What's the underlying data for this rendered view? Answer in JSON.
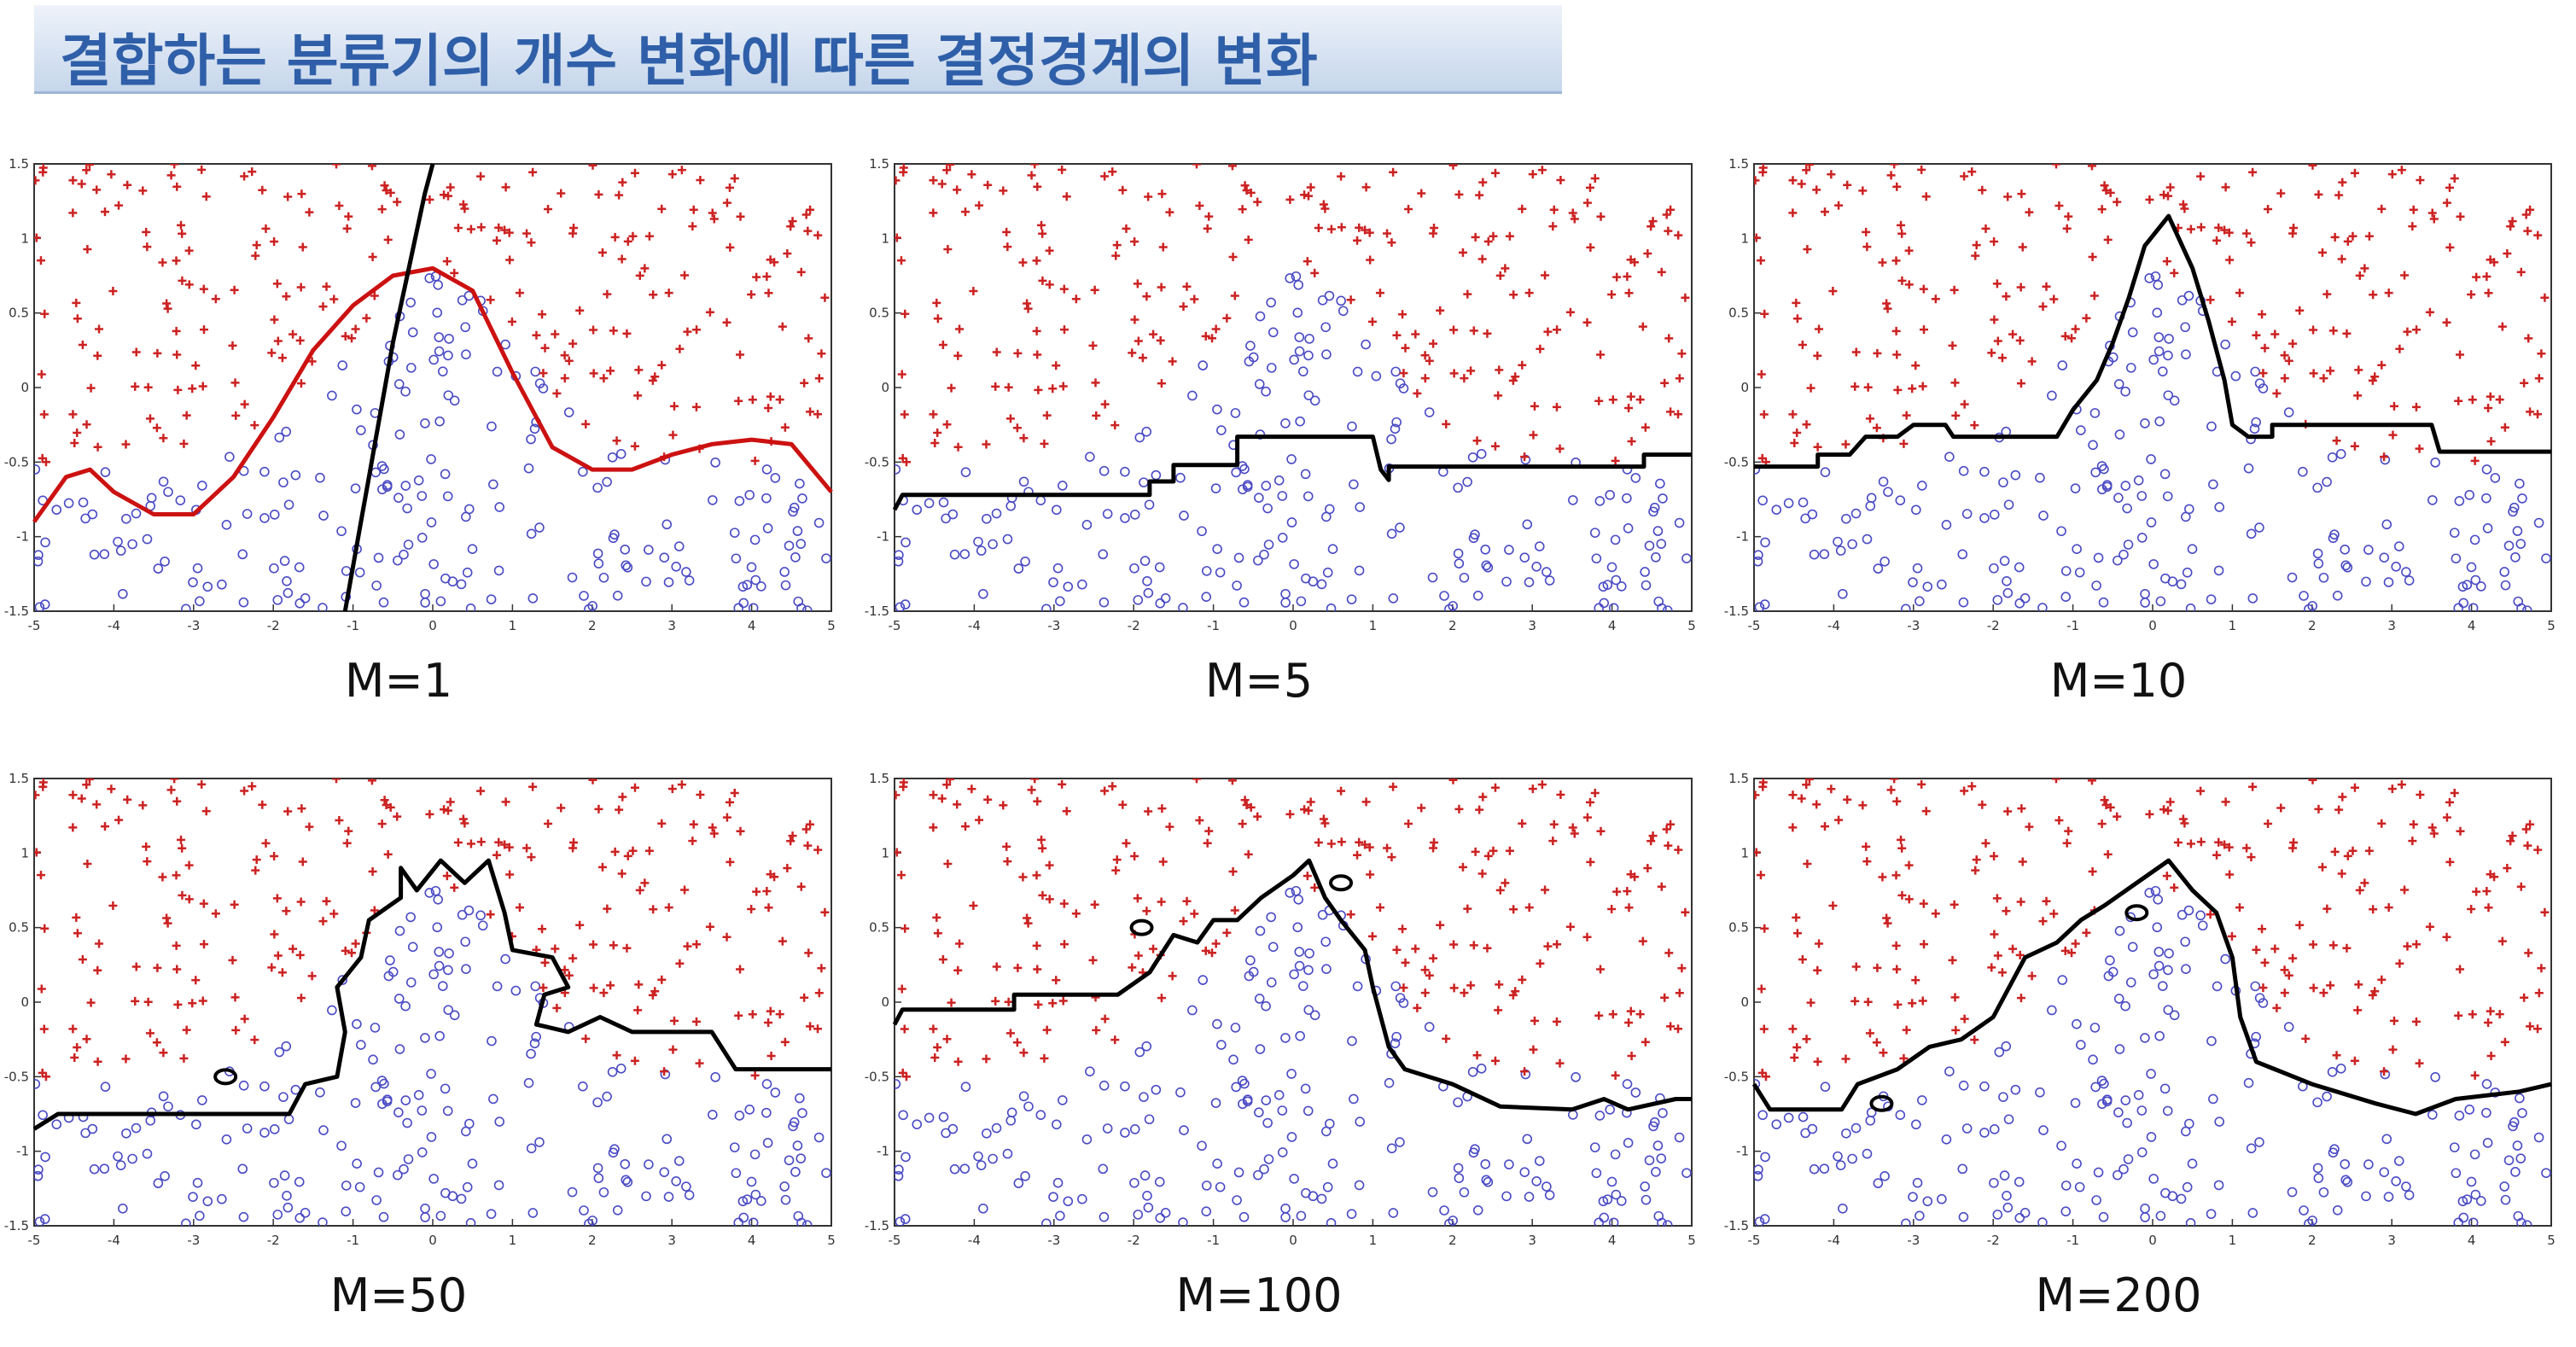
{
  "title": "결합하는 분류기의 개수 변화에 따른 결정경계의 변화",
  "colors": {
    "class_plus": "#cc2222",
    "class_circle": "#4a4ac4",
    "boundary": "#000000",
    "single_classifier": "#cc1111"
  },
  "chart_data": [
    {
      "type": "scatter",
      "label": "M=1",
      "xlim": [
        -5,
        5
      ],
      "ylim": [
        -1.5,
        1.5
      ],
      "xticks": [
        -5,
        -4,
        -3,
        -2,
        -1,
        0,
        1,
        2,
        3,
        4,
        5
      ],
      "yticks": [
        1.5,
        1,
        0.5,
        0,
        -0.5,
        -1,
        -1.5
      ],
      "boundary": [
        [
          -1.1,
          -1.5
        ],
        [
          -1.0,
          -1.2
        ],
        [
          -0.9,
          -0.9
        ],
        [
          -0.8,
          -0.6
        ],
        [
          -0.7,
          -0.3
        ],
        [
          -0.6,
          0
        ],
        [
          -0.5,
          0.3
        ],
        [
          -0.4,
          0.55
        ],
        [
          -0.3,
          0.8
        ],
        [
          -0.2,
          1.05
        ],
        [
          -0.1,
          1.3
        ],
        [
          0,
          1.5
        ]
      ],
      "classifier_curve": [
        [
          -5,
          -0.9
        ],
        [
          -4.6,
          -0.6
        ],
        [
          -4.3,
          -0.55
        ],
        [
          -4,
          -0.7
        ],
        [
          -3.5,
          -0.85
        ],
        [
          -3,
          -0.85
        ],
        [
          -2.5,
          -0.6
        ],
        [
          -2,
          -0.2
        ],
        [
          -1.5,
          0.25
        ],
        [
          -1,
          0.55
        ],
        [
          -0.5,
          0.75
        ],
        [
          0,
          0.8
        ],
        [
          0.5,
          0.65
        ],
        [
          1,
          0.1
        ],
        [
          1.5,
          -0.4
        ],
        [
          2,
          -0.55
        ],
        [
          2.5,
          -0.55
        ],
        [
          3,
          -0.45
        ],
        [
          3.5,
          -0.38
        ],
        [
          4,
          -0.35
        ],
        [
          4.5,
          -0.38
        ],
        [
          5,
          -0.7
        ]
      ]
    },
    {
      "type": "scatter",
      "label": "M=5",
      "xlim": [
        -5,
        5
      ],
      "ylim": [
        -1.5,
        1.5
      ],
      "xticks": [
        -5,
        -4,
        -3,
        -2,
        -1,
        0,
        1,
        2,
        3,
        4,
        5
      ],
      "yticks": [
        1.5,
        1,
        0.5,
        0,
        -0.5,
        -1,
        -1.5
      ],
      "boundary": [
        [
          -5,
          -0.82
        ],
        [
          -4.9,
          -0.72
        ],
        [
          -1.8,
          -0.72
        ],
        [
          -1.8,
          -0.63
        ],
        [
          -1.5,
          -0.63
        ],
        [
          -1.5,
          -0.52
        ],
        [
          -0.7,
          -0.52
        ],
        [
          -0.7,
          -0.33
        ],
        [
          1.0,
          -0.33
        ],
        [
          1.1,
          -0.55
        ],
        [
          1.2,
          -0.62
        ],
        [
          1.2,
          -0.53
        ],
        [
          4.4,
          -0.53
        ],
        [
          4.4,
          -0.45
        ],
        [
          5,
          -0.45
        ]
      ]
    },
    {
      "type": "scatter",
      "label": "M=10",
      "xlim": [
        -5,
        5
      ],
      "ylim": [
        -1.5,
        1.5
      ],
      "xticks": [
        -5,
        -4,
        -3,
        -2,
        -1,
        0,
        1,
        2,
        3,
        4,
        5
      ],
      "yticks": [
        1.5,
        1,
        0.5,
        0,
        -0.5,
        -1,
        -1.5
      ],
      "boundary": [
        [
          -5,
          -0.53
        ],
        [
          -4.2,
          -0.53
        ],
        [
          -4.2,
          -0.45
        ],
        [
          -3.8,
          -0.45
        ],
        [
          -3.6,
          -0.33
        ],
        [
          -3.2,
          -0.33
        ],
        [
          -3.0,
          -0.25
        ],
        [
          -2.6,
          -0.25
        ],
        [
          -2.5,
          -0.33
        ],
        [
          -1.2,
          -0.33
        ],
        [
          -1.0,
          -0.15
        ],
        [
          -0.7,
          0.05
        ],
        [
          -0.5,
          0.3
        ],
        [
          -0.3,
          0.6
        ],
        [
          -0.1,
          0.95
        ],
        [
          0.2,
          1.15
        ],
        [
          0.5,
          0.8
        ],
        [
          0.7,
          0.45
        ],
        [
          0.9,
          0.05
        ],
        [
          1.0,
          -0.25
        ],
        [
          1.2,
          -0.33
        ],
        [
          1.5,
          -0.33
        ],
        [
          1.5,
          -0.25
        ],
        [
          3.5,
          -0.25
        ],
        [
          3.6,
          -0.43
        ],
        [
          5,
          -0.43
        ]
      ]
    },
    {
      "type": "scatter",
      "label": "M=50",
      "xlim": [
        -5,
        5
      ],
      "ylim": [
        -1.5,
        1.5
      ],
      "xticks": [
        -5,
        -4,
        -3,
        -2,
        -1,
        0,
        1,
        2,
        3,
        4,
        5
      ],
      "yticks": [
        1.5,
        1,
        0.5,
        0,
        -0.5,
        -1,
        -1.5
      ],
      "boundary": [
        [
          -5,
          -0.85
        ],
        [
          -4.7,
          -0.75
        ],
        [
          -1.8,
          -0.75
        ],
        [
          -1.6,
          -0.55
        ],
        [
          -1.2,
          -0.5
        ],
        [
          -1.1,
          -0.2
        ],
        [
          -1.2,
          0.1
        ],
        [
          -0.9,
          0.3
        ],
        [
          -0.8,
          0.55
        ],
        [
          -0.4,
          0.7
        ],
        [
          -0.4,
          0.9
        ],
        [
          -0.2,
          0.75
        ],
        [
          0.1,
          0.95
        ],
        [
          0.4,
          0.8
        ],
        [
          0.7,
          0.95
        ],
        [
          0.9,
          0.6
        ],
        [
          1.0,
          0.35
        ],
        [
          1.5,
          0.3
        ],
        [
          1.7,
          0.1
        ],
        [
          1.4,
          0.05
        ],
        [
          1.3,
          -0.15
        ],
        [
          1.7,
          -0.2
        ],
        [
          2.1,
          -0.1
        ],
        [
          2.5,
          -0.2
        ],
        [
          3.5,
          -0.2
        ],
        [
          3.8,
          -0.45
        ],
        [
          5,
          -0.45
        ]
      ],
      "islands": [
        [
          -2.6,
          -0.5
        ]
      ]
    },
    {
      "type": "scatter",
      "label": "M=100",
      "xlim": [
        -5,
        5
      ],
      "ylim": [
        -1.5,
        1.5
      ],
      "xticks": [
        -5,
        -4,
        -3,
        -2,
        -1,
        0,
        1,
        2,
        3,
        4,
        5
      ],
      "yticks": [
        1.5,
        1,
        0.5,
        0,
        -0.5,
        -1,
        -1.5
      ],
      "boundary": [
        [
          -5,
          -0.15
        ],
        [
          -4.9,
          -0.05
        ],
        [
          -3.5,
          -0.05
        ],
        [
          -3.5,
          0.05
        ],
        [
          -2.2,
          0.05
        ],
        [
          -1.8,
          0.2
        ],
        [
          -1.5,
          0.45
        ],
        [
          -1.2,
          0.4
        ],
        [
          -1.0,
          0.55
        ],
        [
          -0.7,
          0.55
        ],
        [
          -0.4,
          0.7
        ],
        [
          0,
          0.85
        ],
        [
          0.2,
          0.95
        ],
        [
          0.4,
          0.7
        ],
        [
          0.6,
          0.55
        ],
        [
          0.9,
          0.35
        ],
        [
          1.0,
          0.1
        ],
        [
          1.2,
          -0.3
        ],
        [
          1.4,
          -0.45
        ],
        [
          2.0,
          -0.55
        ],
        [
          2.6,
          -0.7
        ],
        [
          3.5,
          -0.72
        ],
        [
          3.9,
          -0.65
        ],
        [
          4.2,
          -0.72
        ],
        [
          4.8,
          -0.65
        ],
        [
          5,
          -0.65
        ]
      ],
      "islands": [
        [
          -1.9,
          0.5
        ],
        [
          0.6,
          0.8
        ]
      ]
    },
    {
      "type": "scatter",
      "label": "M=200",
      "xlim": [
        -5,
        5
      ],
      "ylim": [
        -1.5,
        1.5
      ],
      "xticks": [
        -5,
        -4,
        -3,
        -2,
        -1,
        0,
        1,
        2,
        3,
        4,
        5
      ],
      "yticks": [
        1.5,
        1,
        0.5,
        0,
        -0.5,
        -1,
        -1.5
      ],
      "boundary": [
        [
          -5,
          -0.55
        ],
        [
          -4.8,
          -0.72
        ],
        [
          -3.9,
          -0.72
        ],
        [
          -3.7,
          -0.55
        ],
        [
          -3.2,
          -0.45
        ],
        [
          -2.8,
          -0.3
        ],
        [
          -2.4,
          -0.25
        ],
        [
          -2.0,
          -0.1
        ],
        [
          -1.8,
          0.1
        ],
        [
          -1.6,
          0.3
        ],
        [
          -1.2,
          0.4
        ],
        [
          -0.9,
          0.55
        ],
        [
          -0.6,
          0.65
        ],
        [
          -0.2,
          0.8
        ],
        [
          0.2,
          0.95
        ],
        [
          0.5,
          0.75
        ],
        [
          0.8,
          0.6
        ],
        [
          1.0,
          0.3
        ],
        [
          1.1,
          -0.1
        ],
        [
          1.3,
          -0.4
        ],
        [
          2.0,
          -0.55
        ],
        [
          2.8,
          -0.68
        ],
        [
          3.3,
          -0.75
        ],
        [
          3.8,
          -0.65
        ],
        [
          4.6,
          -0.6
        ],
        [
          5,
          -0.55
        ]
      ],
      "islands": [
        [
          -3.4,
          -0.68
        ],
        [
          -0.2,
          0.6
        ]
      ]
    }
  ]
}
